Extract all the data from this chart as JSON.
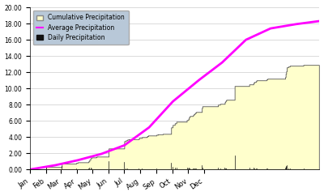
{
  "ylim": [
    0.0,
    20.0
  ],
  "yticks": [
    0.0,
    2.0,
    4.0,
    6.0,
    8.0,
    10.0,
    12.0,
    14.0,
    16.0,
    18.0,
    20.0
  ],
  "month_labels": [
    "Jan",
    "Feb",
    "Mar",
    "Apr",
    "May",
    "Jun",
    "Jul",
    "Aug",
    "Sep",
    "Oct",
    "Nov",
    "Dec"
  ],
  "background_color": "#ffffff",
  "plot_bg_color": "#ffffff",
  "cumulative_color": "#ffffcc",
  "cumulative_edge_color": "#555555",
  "average_color": "#ff00ff",
  "daily_color": "#111111",
  "legend_bg_color": "#b8c8d8",
  "monthly_avg": [
    0.5,
    0.6,
    0.8,
    1.1,
    2.2,
    3.2,
    2.5,
    2.3,
    2.8,
    1.4,
    0.5,
    0.4
  ],
  "cumulative_precipitation": [
    0.0,
    0.0,
    0.0,
    0.0,
    0.0,
    0.0,
    0.0,
    0.0,
    0.0,
    0.0,
    0.05,
    0.05,
    0.05,
    0.05,
    0.05,
    0.05,
    0.05,
    0.05,
    0.05,
    0.05,
    0.05,
    0.05,
    0.05,
    0.05,
    0.05,
    0.05,
    0.05,
    0.05,
    0.05,
    0.05,
    0.05,
    0.32,
    0.32,
    0.32,
    0.32,
    0.32,
    0.32,
    0.32,
    0.32,
    0.32,
    0.32,
    0.32,
    0.32,
    0.32,
    0.32,
    0.32,
    0.32,
    0.32,
    0.32,
    0.32,
    0.32,
    0.32,
    0.32,
    0.32,
    0.32,
    0.32,
    0.32,
    0.32,
    0.32,
    0.32,
    0.32,
    0.74,
    0.74,
    0.74,
    0.74,
    0.74,
    0.74,
    0.74,
    0.74,
    0.74,
    0.74,
    0.74,
    0.74,
    0.74,
    0.74,
    0.74,
    0.74,
    0.74,
    0.74,
    0.74,
    0.74,
    0.74,
    0.74,
    0.74,
    0.74,
    0.74,
    0.74,
    0.74,
    0.74,
    0.84,
    0.84,
    0.84,
    0.9,
    0.9,
    0.9,
    0.9,
    0.9,
    0.9,
    0.9,
    0.9,
    0.9,
    0.9,
    0.9,
    0.9,
    0.9,
    0.9,
    0.9,
    0.9,
    0.9,
    0.9,
    0.9,
    0.9,
    1.0,
    1.0,
    1.2,
    1.2,
    1.4,
    1.4,
    1.5,
    1.5,
    1.5,
    1.5,
    1.5,
    1.5,
    1.5,
    1.5,
    1.5,
    1.55,
    1.6,
    1.6,
    1.6,
    1.6,
    1.6,
    1.6,
    1.6,
    1.6,
    1.6,
    1.6,
    1.6,
    1.6,
    1.6,
    1.6,
    1.6,
    1.6,
    1.6,
    1.6,
    1.6,
    1.6,
    1.6,
    1.6,
    1.6,
    2.6,
    2.6,
    2.6,
    2.6,
    2.6,
    2.6,
    2.6,
    2.6,
    2.6,
    2.6,
    2.6,
    2.6,
    2.6,
    2.6,
    2.6,
    2.6,
    2.6,
    2.6,
    2.6,
    2.6,
    2.6,
    2.6,
    2.6,
    2.6,
    2.6,
    2.6,
    2.6,
    2.6,
    2.6,
    2.6,
    3.5,
    3.5,
    3.5,
    3.6,
    3.6,
    3.6,
    3.7,
    3.7,
    3.7,
    3.75,
    3.75,
    3.75,
    3.75,
    3.75,
    3.75,
    3.75,
    3.75,
    3.75,
    3.75,
    3.75,
    3.75,
    3.75,
    3.75,
    3.75,
    3.75,
    3.75,
    3.75,
    3.75,
    3.85,
    3.9,
    3.9,
    3.9,
    3.9,
    3.9,
    4.0,
    4.0,
    4.0,
    4.0,
    4.0,
    4.0,
    4.0,
    4.0,
    4.0,
    4.05,
    4.1,
    4.15,
    4.2,
    4.2,
    4.2,
    4.2,
    4.2,
    4.2,
    4.2,
    4.2,
    4.2,
    4.2,
    4.2,
    4.2,
    4.2,
    4.2,
    4.2,
    4.2,
    4.3,
    4.3,
    4.3,
    4.35,
    4.35,
    4.35,
    4.35,
    4.35,
    4.35,
    4.35,
    4.35,
    4.35,
    4.4,
    4.4,
    4.4,
    4.4,
    4.4,
    4.4,
    4.4,
    4.4,
    4.4,
    4.4,
    4.4,
    4.4,
    4.4,
    4.4,
    4.4,
    4.4,
    5.2,
    5.2,
    5.2,
    5.5,
    5.5,
    5.5,
    5.5,
    5.7,
    5.7,
    5.7,
    5.9,
    5.9,
    5.9,
    5.9,
    5.9,
    5.9,
    5.9,
    5.9,
    5.9,
    5.9,
    5.9,
    5.9,
    5.9,
    5.9,
    5.9,
    5.9,
    5.9,
    5.9,
    5.9,
    5.9,
    6.1,
    6.1,
    6.1,
    6.2,
    6.4,
    6.5,
    6.6,
    6.6,
    6.6,
    6.6,
    6.6,
    6.6,
    6.7,
    6.8,
    6.8,
    6.9,
    7.0,
    7.0,
    7.1,
    7.1,
    7.1,
    7.1,
    7.1,
    7.1,
    7.1,
    7.1,
    7.1,
    7.1,
    7.1,
    7.6,
    7.8,
    7.8,
    7.8,
    7.8,
    7.8,
    7.8,
    7.8,
    7.8,
    7.8,
    7.8,
    7.8,
    7.8,
    7.8,
    7.8,
    7.8,
    7.8,
    7.8,
    7.8,
    7.8,
    7.8,
    7.8,
    7.8,
    7.8,
    7.8,
    7.8,
    7.8,
    7.8,
    7.8,
    7.8,
    7.8,
    8.0,
    8.0,
    8.0,
    8.0,
    8.1,
    8.1,
    8.1,
    8.1,
    8.1,
    8.1,
    8.1,
    8.1,
    8.1,
    8.3,
    8.4,
    8.5,
    8.6,
    8.6,
    8.6,
    8.6,
    8.6,
    8.6,
    8.6,
    8.6,
    8.6,
    8.6,
    8.6,
    8.6,
    8.6,
    8.6,
    8.6,
    8.6,
    10.3,
    10.3,
    10.3,
    10.3,
    10.3,
    10.3,
    10.3,
    10.3,
    10.3,
    10.3,
    10.3,
    10.3,
    10.3,
    10.3,
    10.3,
    10.3,
    10.3,
    10.3,
    10.3,
    10.3,
    10.3,
    10.3,
    10.3,
    10.3,
    10.3,
    10.3,
    10.3,
    10.3,
    10.5,
    10.5,
    10.5,
    10.5,
    10.5,
    10.5,
    10.5,
    10.5,
    10.7,
    10.7,
    10.8,
    10.8,
    10.8,
    10.9,
    11.0,
    11.0,
    11.0,
    11.0,
    11.0,
    11.0,
    11.0,
    11.0,
    11.0,
    11.0,
    11.0,
    11.0,
    11.0,
    11.0,
    11.0,
    11.0,
    11.0,
    11.0,
    11.0,
    11.1,
    11.1,
    11.2,
    11.2,
    11.2,
    11.2,
    11.2,
    11.2,
    11.2,
    11.2,
    11.2,
    11.2,
    11.2,
    11.2,
    11.2,
    11.2,
    11.2,
    11.2,
    11.2,
    11.2,
    11.2,
    11.2,
    11.2,
    11.2,
    11.2,
    11.2,
    11.2,
    11.2,
    11.2,
    11.2,
    11.2,
    11.2,
    11.2,
    11.2,
    11.2,
    11.2,
    11.4,
    11.8,
    12.1,
    12.6,
    12.6,
    12.6,
    12.7,
    12.7,
    12.7,
    12.8,
    12.8,
    12.8,
    12.8,
    12.8,
    12.8,
    12.8,
    12.8,
    12.8,
    12.8,
    12.8,
    12.8,
    12.8,
    12.8,
    12.8,
    12.8,
    12.8,
    12.8,
    12.8,
    12.8,
    12.8,
    12.8,
    12.8,
    12.8,
    12.8,
    12.8,
    12.9,
    12.9,
    12.9,
    12.9,
    12.9,
    12.9,
    12.9,
    12.9,
    12.9,
    12.9,
    12.9,
    12.9,
    12.9,
    12.9,
    12.9,
    12.9,
    12.9,
    12.9,
    12.9,
    12.9,
    12.9,
    12.9,
    12.9,
    12.9,
    12.9,
    12.9,
    12.9,
    12.9,
    12.9,
    12.9,
    12.9
  ]
}
